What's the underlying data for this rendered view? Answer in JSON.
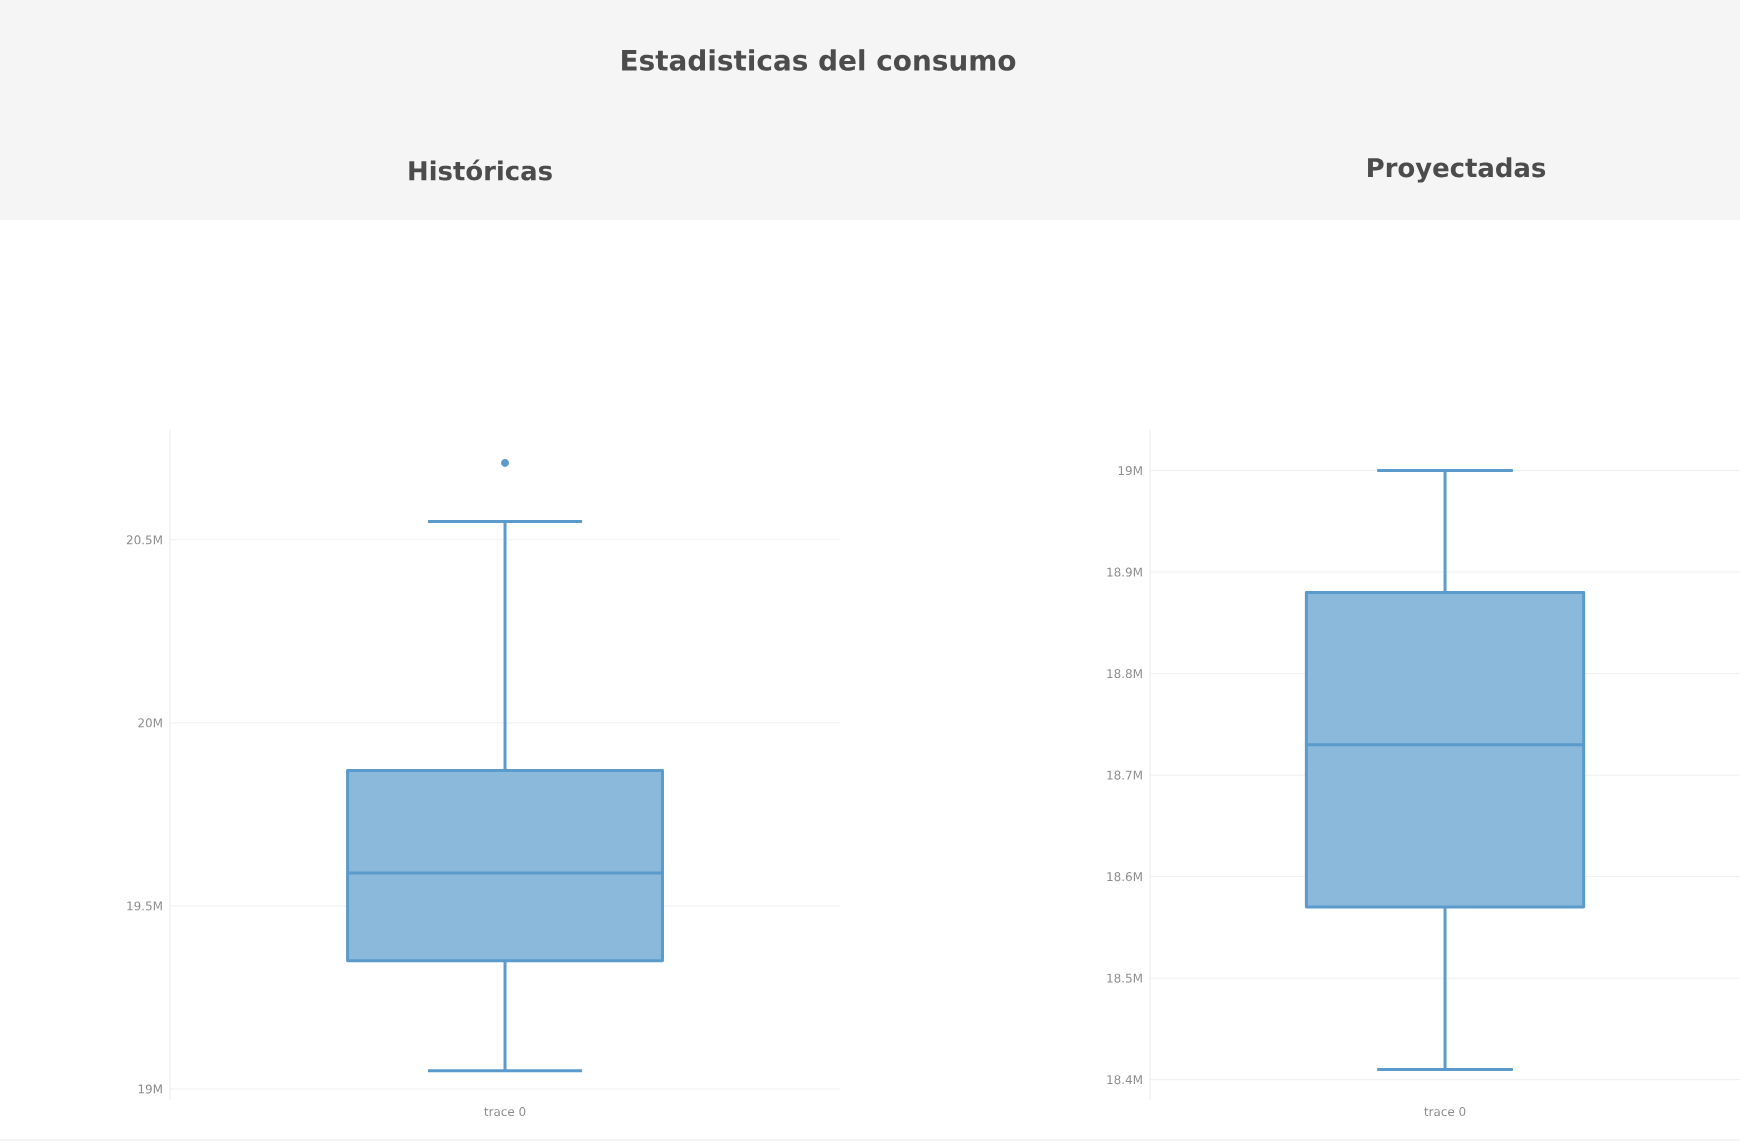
{
  "chart_data": [
    {
      "type": "box",
      "title": "Estadisticas del consumo",
      "subtitle": "Históricas",
      "categories": [
        "trace 0"
      ],
      "color": "#5a9bcb",
      "boxes": [
        {
          "low": 19.05,
          "q1": 19.35,
          "median": 19.59,
          "q3": 19.87,
          "high": 20.55,
          "outliers": [
            20.71
          ]
        }
      ],
      "ylim": [
        18.97,
        20.8
      ],
      "yticks": [
        {
          "value": 19,
          "label": "19M"
        },
        {
          "value": 19.5,
          "label": "19.5M"
        },
        {
          "value": 20,
          "label": "20M"
        },
        {
          "value": 20.5,
          "label": "20.5M"
        }
      ],
      "grid": "y"
    },
    {
      "type": "box",
      "subtitle": "Proyectadas",
      "categories": [
        "trace 0"
      ],
      "color": "#5a9bcb",
      "boxes": [
        {
          "low": 18.41,
          "q1": 18.57,
          "median": 18.73,
          "q3": 18.88,
          "high": 19.0
        }
      ],
      "ylim": [
        18.38,
        19.04
      ],
      "yticks": [
        {
          "value": 18.4,
          "label": "18.4M"
        },
        {
          "value": 18.5,
          "label": "18.5M"
        },
        {
          "value": 18.6,
          "label": "18.6M"
        },
        {
          "value": 18.7,
          "label": "18.7M"
        },
        {
          "value": 18.8,
          "label": "18.8M"
        },
        {
          "value": 18.9,
          "label": "18.9M"
        },
        {
          "value": 19,
          "label": "19M"
        }
      ],
      "grid": "y"
    }
  ]
}
